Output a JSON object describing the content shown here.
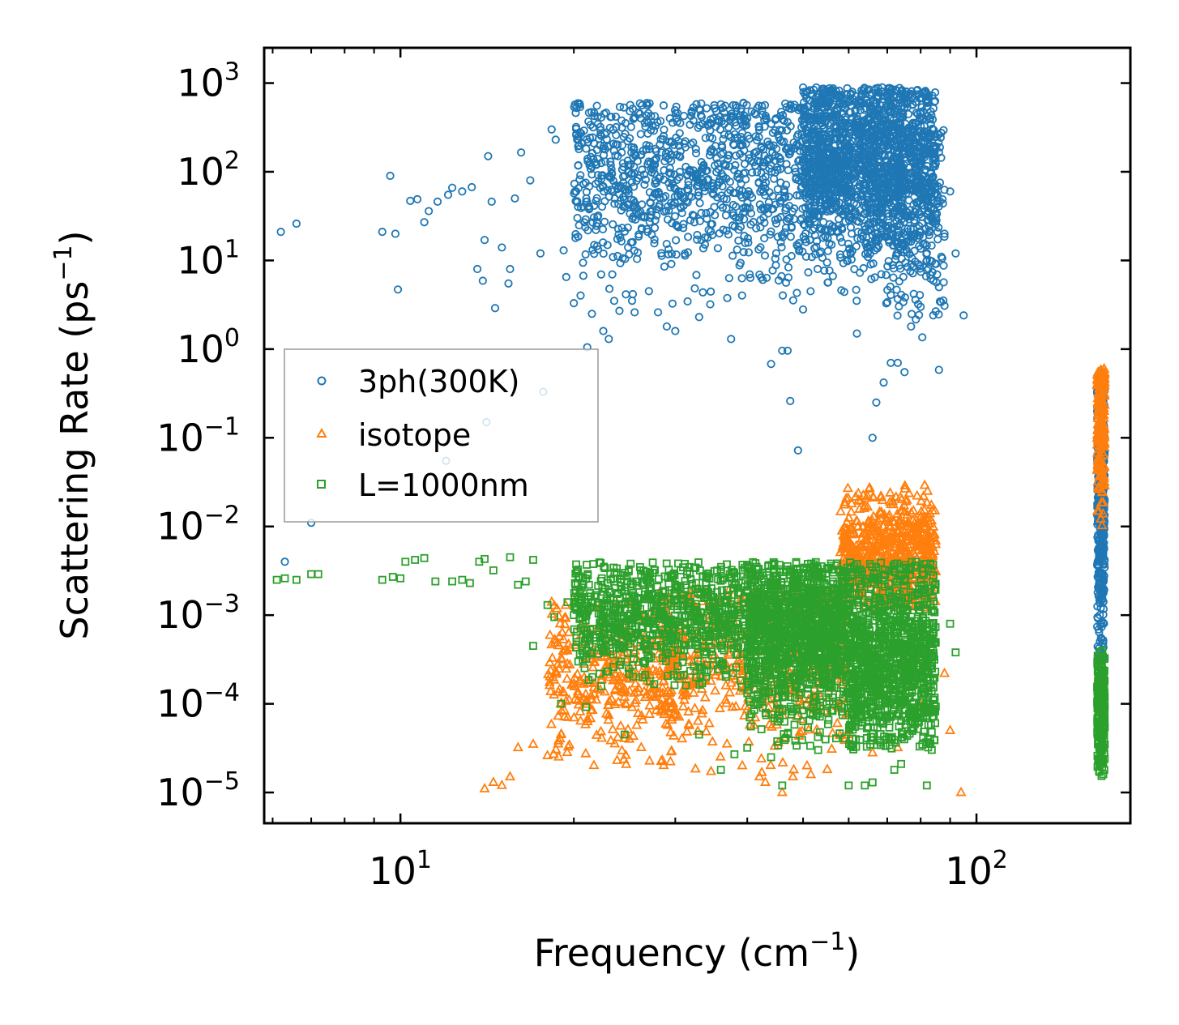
{
  "chart_data": {
    "type": "scatter",
    "title": "",
    "xlabel": {
      "base": "Frequency (cm",
      "sup": "−1",
      "tail": ")"
    },
    "ylabel": {
      "base": "Scattering Rate (ps",
      "sup": "−1",
      "tail": ")"
    },
    "xscale": "log",
    "yscale": "log",
    "xlim": [
      5.8,
      185
    ],
    "ylim": [
      4.5e-06,
      2500
    ],
    "x_ticks": [
      {
        "value": 10,
        "base": "10",
        "exp": "1"
      },
      {
        "value": 100,
        "base": "10",
        "exp": "2"
      }
    ],
    "y_ticks": [
      {
        "value": 1e-05,
        "base": "10",
        "exp": "−5"
      },
      {
        "value": 0.0001,
        "base": "10",
        "exp": "−4"
      },
      {
        "value": 0.001,
        "base": "10",
        "exp": "−3"
      },
      {
        "value": 0.01,
        "base": "10",
        "exp": "−2"
      },
      {
        "value": 0.1,
        "base": "10",
        "exp": "−1"
      },
      {
        "value": 1,
        "base": "10",
        "exp": "0"
      },
      {
        "value": 10,
        "base": "10",
        "exp": "1"
      },
      {
        "value": 100,
        "base": "10",
        "exp": "2"
      },
      {
        "value": 1000,
        "base": "10",
        "exp": "3"
      }
    ],
    "legend_position": "center-left",
    "series": [
      {
        "name": "3ph(300K)",
        "marker": "circle",
        "color": "#1f77b4",
        "points": [
          [
            6.2,
            21
          ],
          [
            6.6,
            26
          ],
          [
            9.3,
            21
          ],
          [
            9.6,
            90
          ],
          [
            9.8,
            20
          ],
          [
            9.9,
            4.7
          ],
          [
            10.4,
            47
          ],
          [
            10.7,
            49
          ],
          [
            11.0,
            27
          ],
          [
            11.2,
            36
          ],
          [
            11.6,
            46
          ],
          [
            12.1,
            55
          ],
          [
            12.3,
            66
          ],
          [
            12.8,
            60
          ],
          [
            13.3,
            67
          ],
          [
            13.6,
            8
          ],
          [
            13.9,
            5.9
          ],
          [
            14.0,
            17
          ],
          [
            14.2,
            150
          ],
          [
            14.4,
            46
          ],
          [
            14.6,
            2.9
          ],
          [
            15.0,
            14
          ],
          [
            15.4,
            5.5
          ],
          [
            15.5,
            8
          ],
          [
            15.8,
            50
          ],
          [
            16.2,
            165
          ],
          [
            16.8,
            80
          ],
          [
            17.5,
            12
          ],
          [
            18.3,
            300
          ],
          [
            18.6,
            230
          ],
          [
            19.2,
            13
          ],
          [
            19.4,
            6.5
          ],
          [
            20.0,
            3.3
          ],
          [
            20.4,
            180
          ],
          [
            21.1,
            1.05
          ],
          [
            21.5,
            2.5
          ],
          [
            22.5,
            1.6
          ],
          [
            23.0,
            1.3
          ],
          [
            23.5,
            3.5
          ],
          [
            24.0,
            2.7
          ],
          [
            25.5,
            2.6
          ],
          [
            27.0,
            4.5
          ],
          [
            28.0,
            2.6
          ],
          [
            29.0,
            1.8
          ],
          [
            30.0,
            1.6
          ],
          [
            33.0,
            2.3
          ],
          [
            34.5,
            3.2
          ],
          [
            37.5,
            1.3
          ],
          [
            44.0,
            0.68
          ],
          [
            46.0,
            0.96
          ],
          [
            47.0,
            0.96
          ],
          [
            47.5,
            0.26
          ],
          [
            49.0,
            0.072
          ],
          [
            50.0,
            2.8
          ],
          [
            53.0,
            8
          ],
          [
            58.0,
            18
          ],
          [
            62.0,
            1.5
          ],
          [
            66.0,
            0.1
          ],
          [
            67.0,
            0.25
          ],
          [
            69.0,
            0.42
          ],
          [
            71.0,
            0.7
          ],
          [
            73.0,
            0.7
          ],
          [
            75.0,
            0.55
          ],
          [
            77.0,
            1.8
          ],
          [
            80.0,
            3
          ],
          [
            83.0,
            10
          ],
          [
            85.0,
            30
          ],
          [
            88.0,
            20
          ],
          [
            90.0,
            60
          ],
          [
            92.0,
            12
          ],
          [
            95.0,
            2.4
          ],
          [
            17.7,
            0.33
          ],
          [
            14.1,
            0.15
          ],
          [
            12.0,
            0.055
          ],
          [
            7.0,
            0.011
          ],
          [
            6.3,
            0.004
          ]
        ],
        "clouds": [
          {
            "x": [
              20,
              75
            ],
            "y": [
              3,
              600
            ],
            "n": 1400,
            "yc": [
              90,
              40
            ]
          },
          {
            "x": [
              50,
              85
            ],
            "y": [
              4,
              900
            ],
            "n": 1300,
            "yc": [
              140,
              55
            ]
          },
          {
            "x": [
              70,
              88
            ],
            "y": [
              0.4,
              300
            ],
            "n": 250,
            "yc": [
              40,
              20
            ]
          },
          {
            "x": [
              162,
              167
            ],
            "y": [
              0.0003,
              0.5
            ],
            "n": 450,
            "yc": [
              0.02,
              0.02
            ]
          }
        ]
      },
      {
        "name": "isotope",
        "marker": "triangle",
        "color": "#ff7f0e",
        "points": [
          [
            14.0,
            1.1e-05
          ],
          [
            14.5,
            1.3e-05
          ],
          [
            15.0,
            1.2e-05
          ],
          [
            15.5,
            1.5e-05
          ],
          [
            16.0,
            3.2e-05
          ],
          [
            17.0,
            3.5e-05
          ],
          [
            18.0,
            2.6e-05
          ],
          [
            19.0,
            4.5e-05
          ],
          [
            42.0,
            1.5e-05
          ],
          [
            43.0,
            1.3e-05
          ],
          [
            46.0,
            1e-05
          ],
          [
            48.0,
            1.5e-05
          ],
          [
            60.0,
            5e-05
          ],
          [
            66.0,
            2.8e-05
          ],
          [
            73.0,
            3.2e-05
          ],
          [
            80.0,
            0.0001
          ],
          [
            90.0,
            5e-05
          ],
          [
            94.0,
            1e-05
          ],
          [
            88.0,
            0.00022
          ]
        ],
        "clouds": [
          {
            "x": [
              18,
              30
            ],
            "y": [
              2e-05,
              0.0016
            ],
            "n": 350,
            "yc": [
              0.00018,
              8e-05
            ]
          },
          {
            "x": [
              28,
              60
            ],
            "y": [
              1.5e-05,
              0.002
            ],
            "n": 500,
            "yc": [
              0.0003,
              0.00012
            ]
          },
          {
            "x": [
              58,
              85
            ],
            "y": [
              0.0012,
              0.03
            ],
            "n": 650,
            "yc": [
              0.005,
              0.0025
            ]
          },
          {
            "x": [
              162,
              167
            ],
            "y": [
              0.008,
              0.6
            ],
            "n": 220,
            "yc": [
              0.15,
              0.1
            ]
          }
        ]
      },
      {
        "name": "L=1000nm",
        "marker": "square",
        "color": "#2ca02c",
        "points": [
          [
            6.1,
            0.0025
          ],
          [
            6.3,
            0.0026
          ],
          [
            6.6,
            0.0025
          ],
          [
            7.0,
            0.0029
          ],
          [
            7.2,
            0.0029
          ],
          [
            9.3,
            0.0025
          ],
          [
            9.7,
            0.0027
          ],
          [
            10.0,
            0.0026
          ],
          [
            10.2,
            0.004
          ],
          [
            10.6,
            0.0042
          ],
          [
            11.0,
            0.0044
          ],
          [
            11.5,
            0.0024
          ],
          [
            12.3,
            0.0024
          ],
          [
            12.8,
            0.0025
          ],
          [
            13.2,
            0.0023
          ],
          [
            13.7,
            0.004
          ],
          [
            14.0,
            0.0043
          ],
          [
            14.5,
            0.0032
          ],
          [
            15.5,
            0.0045
          ],
          [
            16.0,
            0.0022
          ],
          [
            16.5,
            0.0024
          ],
          [
            17.0,
            0.0042
          ],
          [
            18.0,
            0.0013
          ],
          [
            18.5,
            0.00095
          ],
          [
            19.5,
            0.0014
          ],
          [
            20.0,
            0.001
          ],
          [
            17.0,
            0.00045
          ],
          [
            19.0,
            0.0001
          ],
          [
            21.0,
            9.2e-05
          ],
          [
            24.5,
            4.5e-05
          ],
          [
            33.0,
            4.5e-05
          ],
          [
            36.0,
            1.8e-05
          ],
          [
            38.0,
            2.7e-05
          ],
          [
            40.0,
            3.2e-05
          ],
          [
            44.0,
            2.5e-05
          ],
          [
            46.0,
            1.2e-05
          ],
          [
            60.0,
            1.2e-05
          ],
          [
            64.0,
            1.2e-05
          ],
          [
            66.0,
            1.3e-05
          ],
          [
            72.0,
            1.8e-05
          ],
          [
            74.0,
            2.1e-05
          ],
          [
            82.0,
            1.2e-05
          ],
          [
            90.0,
            0.0008
          ],
          [
            92.0,
            0.00038
          ]
        ],
        "clouds": [
          {
            "x": [
              20,
              60
            ],
            "y": [
              0.00015,
              0.004
            ],
            "n": 1300,
            "yc": [
              0.001,
              0.0006
            ]
          },
          {
            "x": [
              40,
              85
            ],
            "y": [
              3e-05,
              0.004
            ],
            "n": 1500,
            "yc": [
              0.0005,
              0.0004
            ]
          },
          {
            "x": [
              60,
              85
            ],
            "y": [
              3e-05,
              0.001
            ],
            "n": 400,
            "yc": [
              0.00015,
              8e-05
            ]
          },
          {
            "x": [
              162,
              167
            ],
            "y": [
              1.5e-05,
              0.0004
            ],
            "n": 250,
            "yc": [
              8e-05,
              6e-05
            ]
          }
        ]
      }
    ]
  }
}
